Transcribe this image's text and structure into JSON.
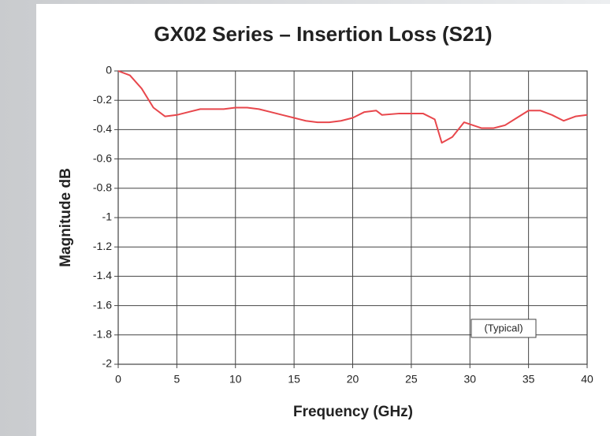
{
  "chart_data": {
    "type": "line",
    "title": "GX02 Series – Insertion Loss (S21)",
    "x_label": "Frequency (GHz)",
    "y_label": "Magnitude dB",
    "annotation": "(Typical)",
    "x": [
      0,
      1,
      2,
      3,
      4,
      5,
      6,
      7,
      8,
      9,
      10,
      11,
      12,
      13,
      14,
      15,
      16,
      17,
      18,
      19,
      20,
      21,
      22,
      22.5,
      24,
      26,
      27,
      27.6,
      28.5,
      29.5,
      31,
      32,
      33,
      34,
      35,
      36,
      37,
      38,
      39,
      40
    ],
    "series": [
      {
        "name": "S21",
        "color": "#e8474c",
        "values": [
          0,
          -0.03,
          -0.12,
          -0.25,
          -0.31,
          -0.3,
          -0.28,
          -0.26,
          -0.26,
          -0.26,
          -0.25,
          -0.25,
          -0.26,
          -0.28,
          -0.3,
          -0.32,
          -0.34,
          -0.35,
          -0.35,
          -0.34,
          -0.32,
          -0.28,
          -0.27,
          -0.3,
          -0.29,
          -0.29,
          -0.33,
          -0.49,
          -0.45,
          -0.35,
          -0.39,
          -0.39,
          -0.37,
          -0.32,
          -0.27,
          -0.27,
          -0.3,
          -0.34,
          -0.31,
          -0.3
        ]
      }
    ],
    "xlim": [
      0,
      40
    ],
    "xticks": [
      0,
      5,
      10,
      15,
      20,
      25,
      30,
      35,
      40
    ],
    "ylim": [
      -2,
      0
    ],
    "yticks": [
      0,
      -0.2,
      -0.4,
      -0.6,
      -0.8,
      -1,
      -1.2,
      -1.4,
      -1.6,
      -1.8,
      -2
    ],
    "grid": true
  }
}
